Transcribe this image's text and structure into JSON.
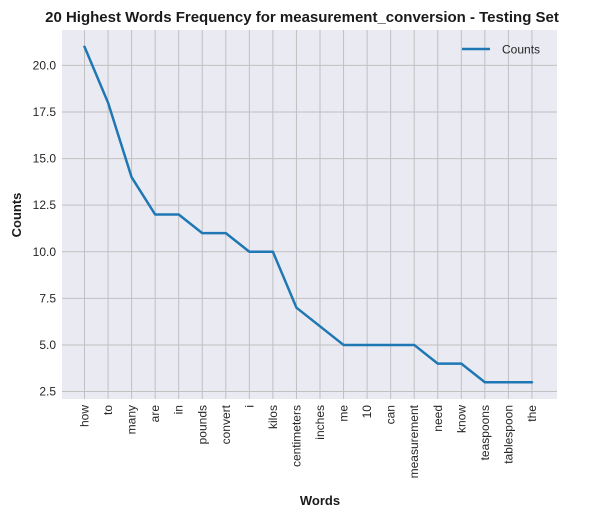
{
  "chart_data": {
    "type": "line",
    "title": "20 Highest Words Frequency for measurement_conversion - Testing Set",
    "xlabel": "Words",
    "ylabel": "Counts",
    "categories": [
      "how",
      "to",
      "many",
      "are",
      "in",
      "pounds",
      "convert",
      "i",
      "kilos",
      "centimeters",
      "inches",
      "me",
      "10",
      "can",
      "measurement",
      "need",
      "know",
      "teaspoons",
      "tablespoon",
      "the"
    ],
    "series": [
      {
        "name": "Counts",
        "values": [
          21,
          18,
          14,
          12,
          12,
          11,
          11,
          10,
          10,
          7,
          6,
          5,
          5,
          5,
          5,
          4,
          4,
          3,
          3,
          3
        ],
        "color": "#1f77b4"
      }
    ],
    "ylim": [
      2.1,
      21.9
    ],
    "yticks": [
      2.5,
      5.0,
      7.5,
      10.0,
      12.5,
      15.0,
      17.5,
      20.0
    ],
    "ytick_labels": [
      "2.5",
      "5.0",
      "7.5",
      "10.0",
      "12.5",
      "15.0",
      "17.5",
      "20.0"
    ],
    "grid": true,
    "legend_position": "top-right",
    "colors": {
      "plot_background": "#eaeaf2",
      "grid": "#c0c0c0",
      "line": "#1f77b4"
    }
  }
}
